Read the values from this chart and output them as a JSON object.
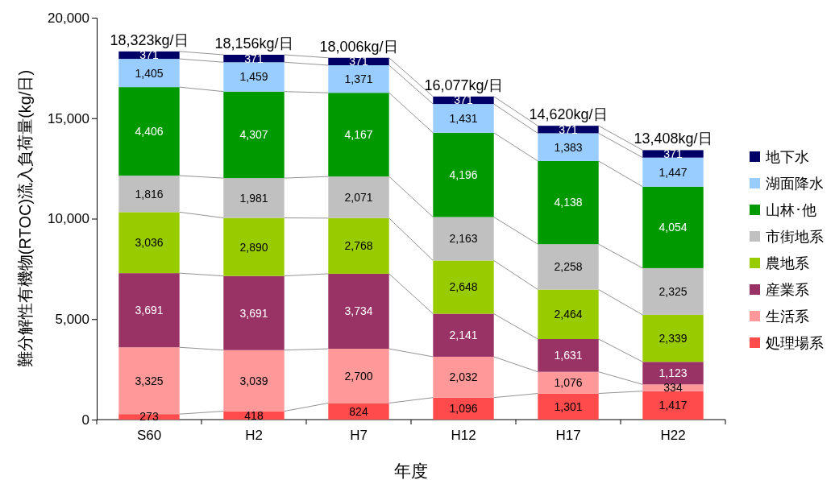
{
  "chart_data": {
    "type": "bar",
    "stacked": true,
    "xlabel": "年度",
    "ylabel": "難分解性有機物(RTOC)流入負荷量(kg/日)",
    "categories": [
      "S60",
      "H2",
      "H7",
      "H12",
      "H17",
      "H22"
    ],
    "ylim": [
      0,
      20000
    ],
    "yticks": [
      0,
      {
        "value": 5000,
        "label": "5,000"
      },
      {
        "value": 10000,
        "label": "10,000"
      },
      {
        "value": 15000,
        "label": "15,000"
      },
      {
        "value": 20000,
        "label": "20,000"
      }
    ],
    "legend": "right",
    "grid": false,
    "totals": [
      "18,323kg/日",
      "18,156kg/日",
      "18,006kg/日",
      "16,077kg/日",
      "14,620kg/日",
      "13,408kg/日"
    ],
    "series": [
      {
        "name": "処理場系",
        "color": "#ff4b4b",
        "values": [
          273,
          418,
          824,
          1096,
          1301,
          1417
        ],
        "value_labels": [
          "273",
          "418",
          "824",
          "1,096",
          "1,301",
          "1,417"
        ]
      },
      {
        "name": "生活系",
        "color": "#ff9999",
        "values": [
          3325,
          3039,
          2700,
          2032,
          1076,
          334
        ],
        "value_labels": [
          "3,325",
          "3,039",
          "2,700",
          "2,032",
          "1,076",
          "334"
        ]
      },
      {
        "name": "産業系",
        "color": "#993366",
        "values": [
          3691,
          3691,
          3734,
          2141,
          1631,
          1123
        ],
        "value_labels": [
          "3,691",
          "3,691",
          "3,734",
          "2,141",
          "1,631",
          "1,123"
        ]
      },
      {
        "name": "農地系",
        "color": "#99cc00",
        "values": [
          3036,
          2890,
          2768,
          2648,
          2464,
          2339
        ],
        "value_labels": [
          "3,036",
          "2,890",
          "2,768",
          "2,648",
          "2,464",
          "2,339"
        ]
      },
      {
        "name": "市街地系",
        "color": "#c0c0c0",
        "values": [
          1816,
          1981,
          2071,
          2163,
          2258,
          2325
        ],
        "value_labels": [
          "1,816",
          "1,981",
          "2,071",
          "2,163",
          "2,258",
          "2,325"
        ]
      },
      {
        "name": "山林･他",
        "color": "#009900",
        "values": [
          4406,
          4307,
          4167,
          4196,
          4138,
          4054
        ],
        "value_labels": [
          "4,406",
          "4,307",
          "4,167",
          "4,196",
          "4,138",
          "4,054"
        ]
      },
      {
        "name": "湖面降水",
        "color": "#99ccff",
        "values": [
          1405,
          1459,
          1371,
          1431,
          1383,
          1447
        ],
        "value_labels": [
          "1,405",
          "1,459",
          "1,371",
          "1,431",
          "1,383",
          "1,447"
        ]
      },
      {
        "name": "地下水",
        "color": "#000066",
        "values": [
          371,
          371,
          371,
          371,
          371,
          371
        ],
        "value_labels": [
          "371",
          "371",
          "371",
          "371",
          "371",
          "371"
        ]
      }
    ]
  }
}
